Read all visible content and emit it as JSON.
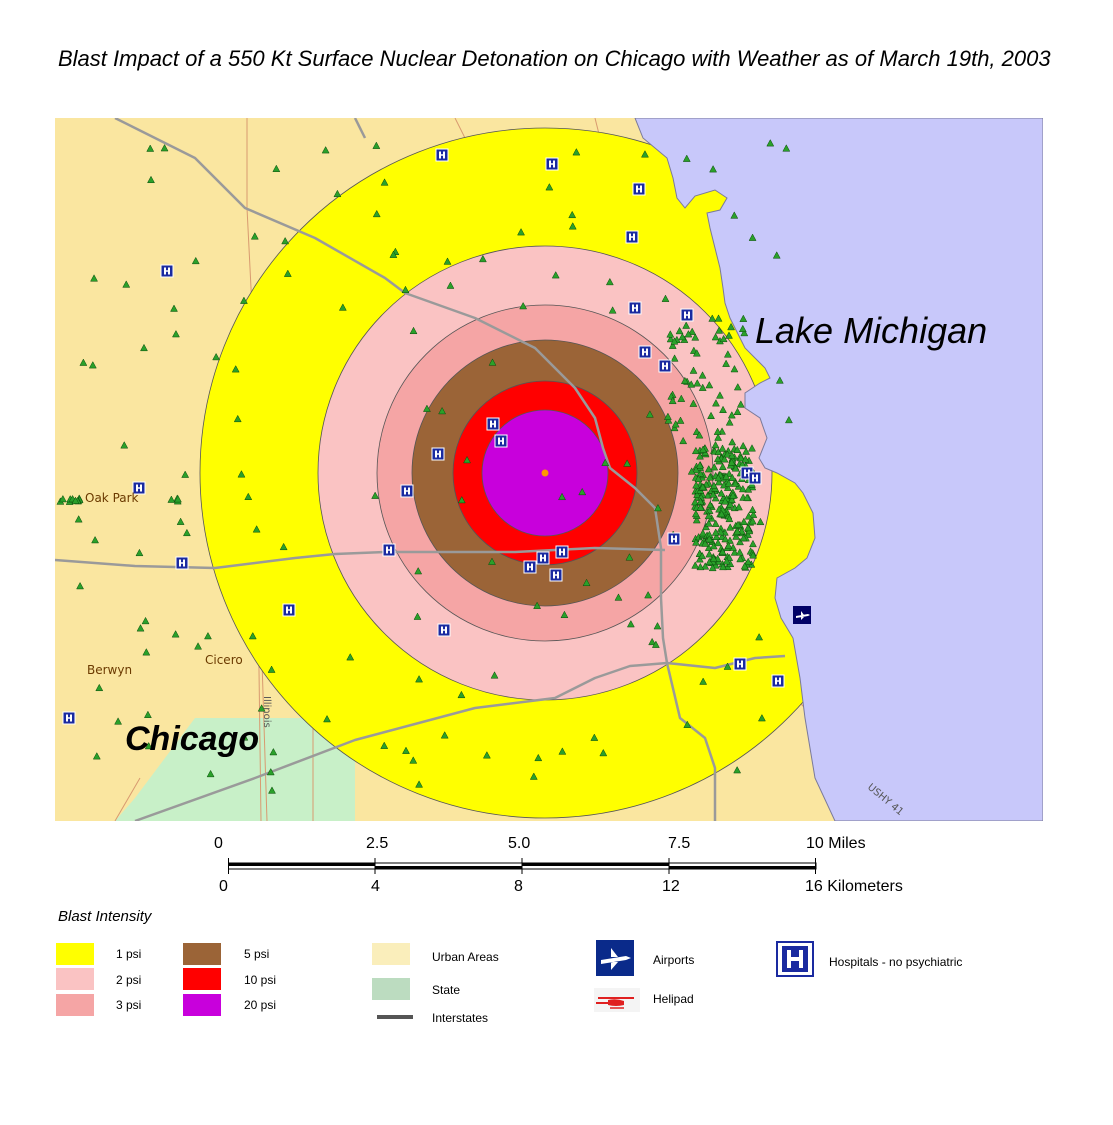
{
  "title": "Blast Impact of a 550 Kt Surface Nuclear Detonation on Chicago with Weather as of March 19th, 2003",
  "map": {
    "place_labels": {
      "lake": "Lake Michigan",
      "city": "Chicago",
      "oak_park": "Oak Park",
      "berwyn": "Berwyn",
      "cicero": "Cicero",
      "illinois": "Illinois",
      "ushy": "USHY 41"
    },
    "colors": {
      "water": "#c8c8fa",
      "land": "#fae6a0",
      "state": "#c8f0c8",
      "psi_1": "#ffff00",
      "psi_2": "#fac3c3",
      "psi_3": "#f5a5a5",
      "psi_5": "#9b6437",
      "psi_10": "#ff0000",
      "psi_20": "#c800dc",
      "interstate": "#9a9a9a",
      "hospital": "#0000cc"
    }
  },
  "scale_bar": {
    "miles": [
      "0",
      "2.5",
      "5.0",
      "7.5",
      "10 Miles"
    ],
    "km": [
      "0",
      "4",
      "8",
      "12",
      "16 Kilometers"
    ]
  },
  "legend": {
    "title": "Blast Intensity",
    "psi": [
      {
        "label": "1 psi",
        "color": "#ffff00"
      },
      {
        "label": "2 psi",
        "color": "#fac3c3"
      },
      {
        "label": "3 psi",
        "color": "#f5a5a5"
      },
      {
        "label": "5 psi",
        "color": "#9b6437"
      },
      {
        "label": "10 psi",
        "color": "#ff0000"
      },
      {
        "label": "20 psi",
        "color": "#c800dc"
      }
    ],
    "urban": "Urban Areas",
    "state": "State",
    "interstates": "Interstates",
    "airports": "Airports",
    "helipad": "Helipad",
    "hospitals": "Hospitals - no psychiatric"
  }
}
